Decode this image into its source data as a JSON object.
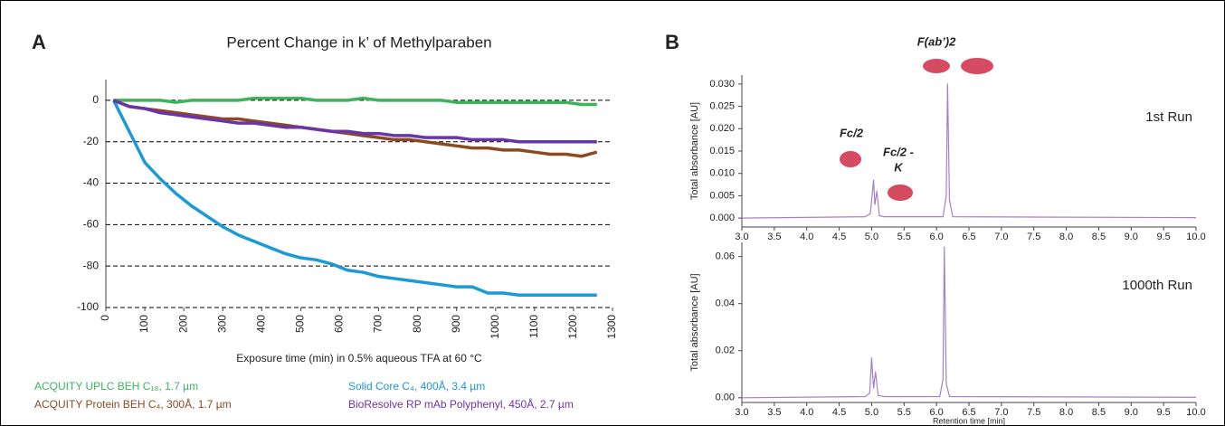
{
  "chart_data": [
    {
      "type": "line",
      "panel_label": "A",
      "title": "Percent Change in k’ of Methylparaben",
      "x_label": "Exposure time (min) in 0.5% aqueous TFA at 60 °C",
      "x": [
        20,
        60,
        100,
        140,
        180,
        220,
        260,
        300,
        340,
        380,
        420,
        460,
        500,
        540,
        580,
        620,
        660,
        700,
        740,
        780,
        820,
        860,
        900,
        940,
        980,
        1020,
        1060,
        1100,
        1140,
        1180,
        1220,
        1260
      ],
      "series": [
        {
          "name": "ACQUITY UPLC BEH C₁₈, 1.7 µm",
          "color": "#3cb55a",
          "values": [
            0,
            0,
            0,
            0,
            -1,
            0,
            0,
            0,
            0,
            1,
            1,
            1,
            1,
            0,
            0,
            0,
            1,
            0,
            0,
            0,
            0,
            0,
            -1,
            -1,
            -1,
            -1,
            -1,
            -1,
            -1,
            -1,
            -2,
            -2
          ]
        },
        {
          "name": "Solid Core C₄, 400Å, 3.4 µm",
          "color": "#1a9ad6",
          "values": [
            0,
            -15,
            -30,
            -38,
            -45,
            -51,
            -56,
            -61,
            -65,
            -68,
            -71,
            -74,
            -76,
            -77,
            -79,
            -82,
            -83,
            -85,
            -86,
            -87,
            -88,
            -89,
            -90,
            -90,
            -93,
            -93,
            -94,
            -94,
            -94,
            -94,
            -94,
            -94
          ]
        },
        {
          "name": "ACQUITY Protein BEH C₄, 300Å, 1.7 µm",
          "color": "#8b4a22",
          "values": [
            0,
            -3,
            -4,
            -5,
            -6,
            -7,
            -8,
            -9,
            -9,
            -10,
            -11,
            -12,
            -13,
            -14,
            -15,
            -16,
            -17,
            -18,
            -19,
            -19,
            -20,
            -21,
            -22,
            -23,
            -23,
            -24,
            -24,
            -25,
            -26,
            -26,
            -27,
            -25
          ]
        },
        {
          "name": "BioResolve RP mAb Polyphenyl, 450Å, 2.7 µm",
          "color": "#6a35a8",
          "values": [
            0,
            -3,
            -4,
            -6,
            -7,
            -8,
            -9,
            -10,
            -11,
            -11,
            -12,
            -13,
            -13,
            -14,
            -15,
            -15,
            -16,
            -16,
            -17,
            -17,
            -18,
            -18,
            -18,
            -19,
            -19,
            -19,
            -20,
            -20,
            -20,
            -20,
            -20,
            -20
          ]
        }
      ],
      "xlim": [
        0,
        1300
      ],
      "xticks": [
        0,
        100,
        200,
        300,
        400,
        500,
        600,
        700,
        800,
        900,
        1000,
        1100,
        1200,
        1300
      ],
      "ylim": [
        -100,
        10
      ],
      "yticks": [
        0,
        -20,
        -40,
        -60,
        -80,
        -100
      ],
      "grid": true
    },
    {
      "type": "line",
      "panel_label": "B",
      "y_label": "Total absorbance [AU]",
      "annotations": [
        "F(ab’)2",
        "Fc/2",
        "Fc/2 -",
        "K",
        "1st Run"
      ],
      "x": [
        3.0,
        4.9,
        4.98,
        5.03,
        5.05,
        5.08,
        5.12,
        5.2,
        6.1,
        6.15,
        6.17,
        6.2,
        6.25,
        10.0
      ],
      "series": [
        {
          "color": "#a580c8",
          "values": [
            0,
            0.0003,
            0.001,
            0.0085,
            0.003,
            0.006,
            0.0005,
            0.0003,
            0.0003,
            0.005,
            0.03,
            0.004,
            0.0003,
            0.0001
          ]
        }
      ],
      "xlim": [
        3.0,
        10.0
      ],
      "xticks": [
        {
          "value": 3,
          "label": "3.0"
        },
        3.5,
        {
          "value": 4,
          "label": "4.0"
        },
        4.5,
        {
          "value": 5,
          "label": "5.0"
        },
        5.5,
        {
          "value": 6,
          "label": "6.0"
        },
        6.5,
        {
          "value": 7,
          "label": "7.0"
        },
        7.5,
        {
          "value": 8,
          "label": "8.0"
        },
        8.5,
        {
          "value": 9,
          "label": "9.0"
        },
        9.5,
        {
          "value": 10,
          "label": "10.0"
        }
      ],
      "ylim": [
        -0.002,
        0.032
      ],
      "yticks": [
        {
          "value": 0,
          "label": "0.000"
        },
        0.005,
        {
          "value": 0.01,
          "label": "0.010"
        },
        0.015,
        {
          "value": 0.02,
          "label": "0.020"
        },
        0.025,
        {
          "value": 0.03,
          "label": "0.030"
        }
      ]
    },
    {
      "type": "line",
      "y_label": "Total absorbance [AU]",
      "x_label": "Retention time [min]",
      "annotations": [
        "1000th Run"
      ],
      "x": [
        3.0,
        4.9,
        4.97,
        5.0,
        5.03,
        5.06,
        5.1,
        5.2,
        6.05,
        6.1,
        6.12,
        6.15,
        6.2,
        10.0
      ],
      "series": [
        {
          "color": "#a580c8",
          "values": [
            0,
            0.0005,
            0.002,
            0.017,
            0.004,
            0.011,
            0.001,
            0.0005,
            0.0005,
            0.008,
            0.064,
            0.006,
            0.0005,
            0.0002
          ]
        }
      ],
      "xlim": [
        3.0,
        10.0
      ],
      "xticks": [
        {
          "value": 3,
          "label": "3.0"
        },
        3.5,
        {
          "value": 4,
          "label": "4.0"
        },
        4.5,
        {
          "value": 5,
          "label": "5.0"
        },
        5.5,
        {
          "value": 6,
          "label": "6.0"
        },
        6.5,
        {
          "value": 7,
          "label": "7.0"
        },
        7.5,
        {
          "value": 8,
          "label": "8.0"
        },
        8.5,
        {
          "value": 9,
          "label": "9.0"
        },
        9.5,
        {
          "value": 10,
          "label": "10.0"
        }
      ],
      "ylim": [
        -0.002,
        0.066
      ],
      "yticks": [
        {
          "value": 0,
          "label": "0.00"
        },
        {
          "value": 0.02,
          "label": "0.02"
        },
        {
          "value": 0.04,
          "label": "0.04"
        },
        {
          "value": 0.06,
          "label": "0.06"
        }
      ]
    }
  ]
}
